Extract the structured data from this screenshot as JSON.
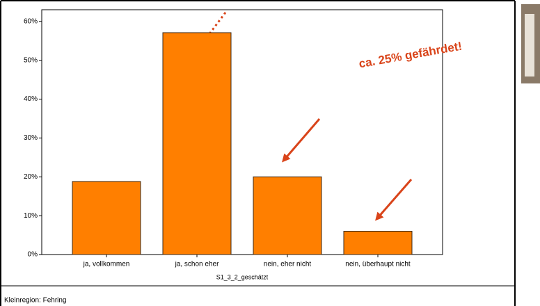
{
  "chart_data": {
    "type": "bar",
    "categories": [
      "ja, vollkommen",
      "ja, schon eher",
      "nein, eher nicht",
      "nein, überhaupt nicht"
    ],
    "values": [
      18.8,
      57.1,
      20,
      6
    ],
    "color": "#ff7f00",
    "ylim": [
      0,
      63
    ],
    "yticks": [
      {
        "value": 0,
        "label": "0%"
      },
      {
        "value": 10,
        "label": "10%"
      },
      {
        "value": 20,
        "label": "20%"
      },
      {
        "value": 30,
        "label": "30%"
      },
      {
        "value": 40,
        "label": "40%"
      },
      {
        "value": 50,
        "label": "50%"
      },
      {
        "value": 60,
        "label": "60%"
      }
    ],
    "xlabel": "S1_3_2_geschätzt",
    "annotation": "ca. 25% gefährdet!",
    "footnote": "Kleinregion: Fehring"
  }
}
